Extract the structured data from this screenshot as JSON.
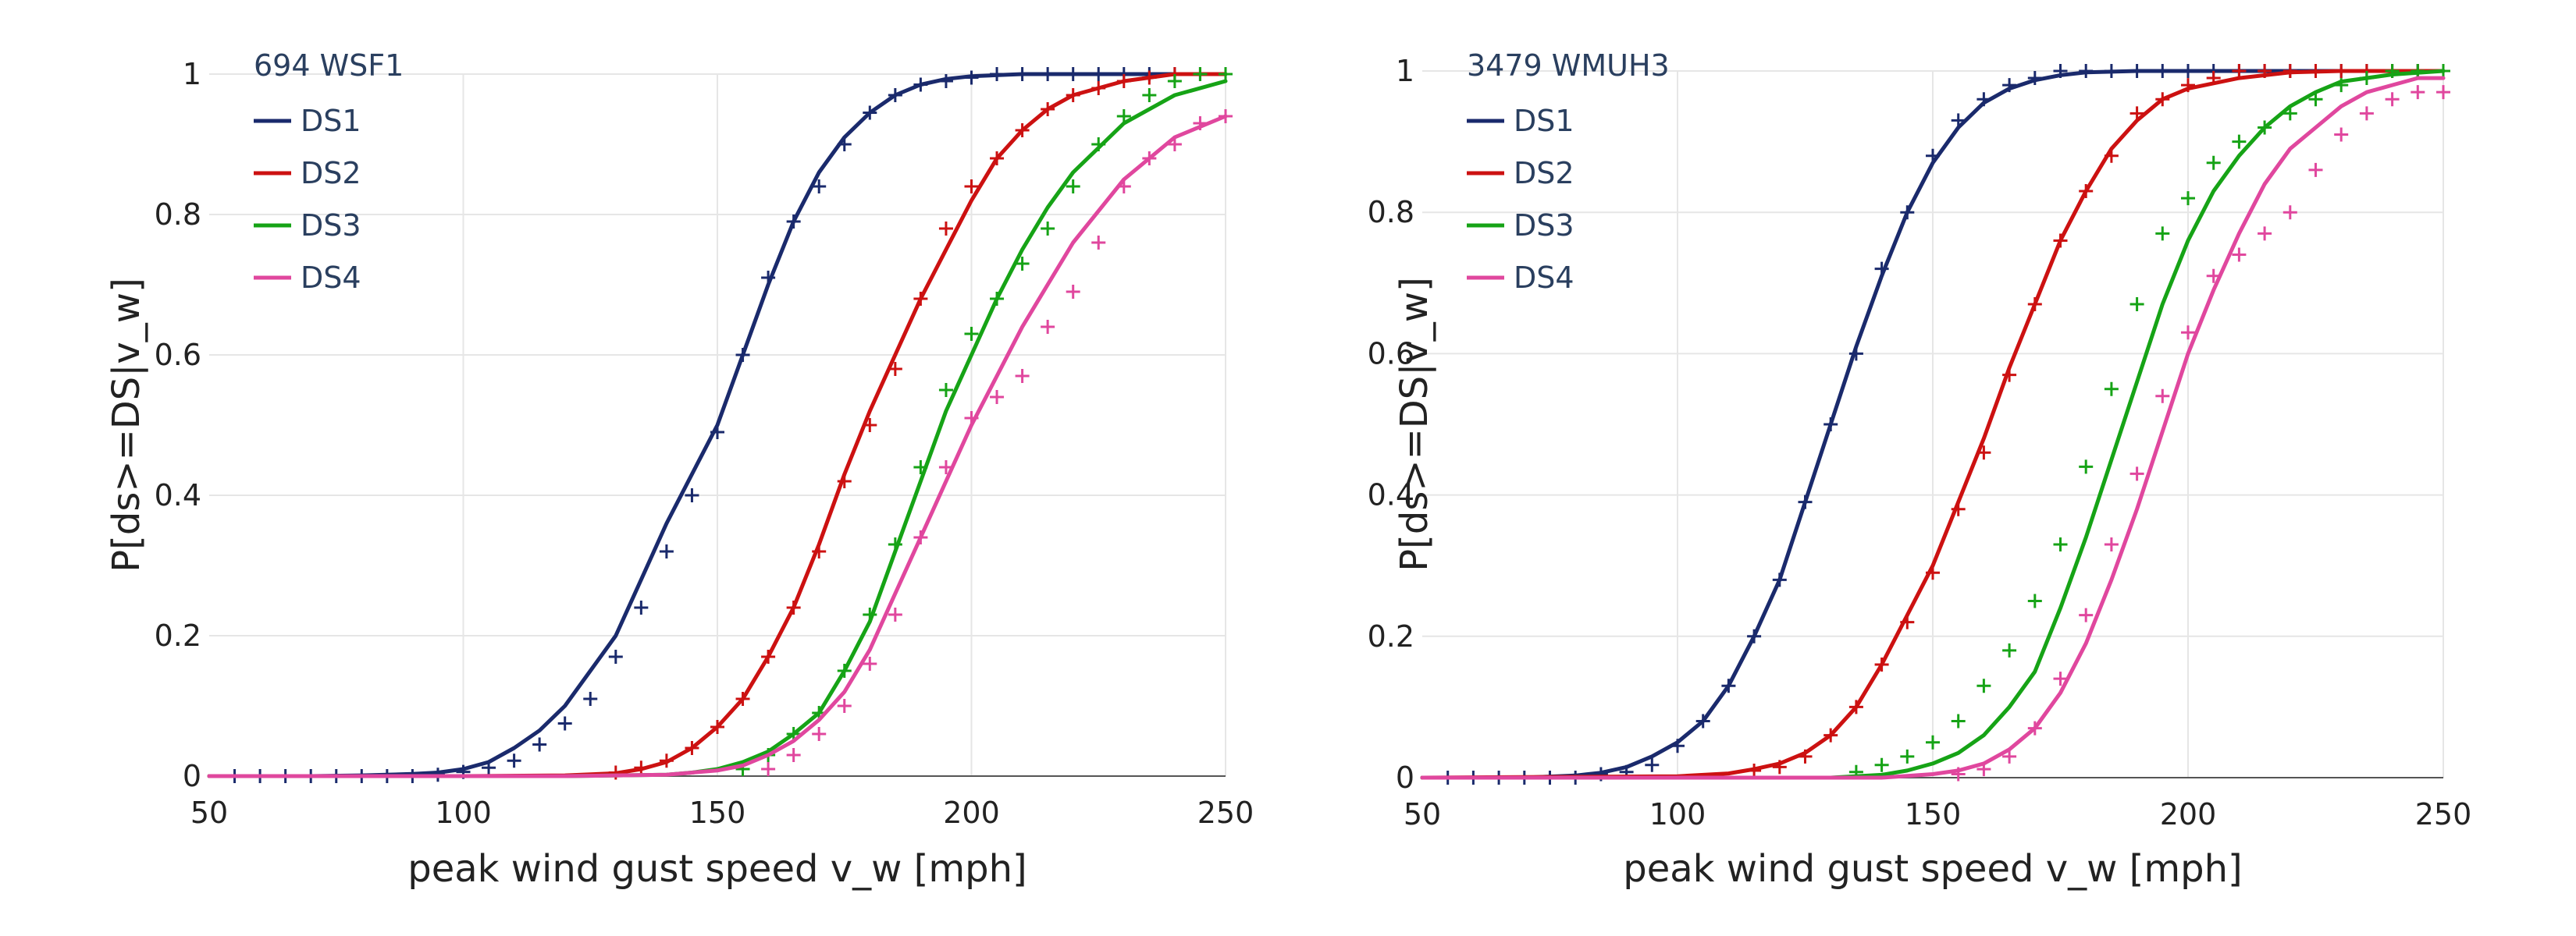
{
  "chart_data": [
    {
      "type": "line",
      "title": "694 WSF1",
      "xlabel": "peak wind gust speed v_w [mph]",
      "ylabel": "P[ds>=DS|v_w]",
      "xlim": [
        50,
        250
      ],
      "ylim": [
        0,
        1
      ],
      "xticks": [
        "50",
        "100",
        "150",
        "200",
        "250"
      ],
      "yticks": [
        "0",
        "0.2",
        "0.4",
        "0.6",
        "0.8",
        "1"
      ],
      "grid": true,
      "legend": "top-left",
      "series": [
        {
          "name": "DS1",
          "color": "#1a2a6c",
          "curve": {
            "x": [
              50,
              60,
              70,
              80,
              90,
              95,
              100,
              105,
              110,
              115,
              120,
              125,
              130,
              135,
              140,
              145,
              150,
              155,
              160,
              165,
              170,
              175,
              180,
              185,
              190,
              195,
              200,
              210,
              220,
              230,
              240,
              250
            ],
            "y": [
              0,
              0,
              0,
              0.001,
              0.003,
              0.005,
              0.01,
              0.02,
              0.04,
              0.065,
              0.1,
              0.15,
              0.2,
              0.28,
              0.36,
              0.43,
              0.5,
              0.6,
              0.7,
              0.79,
              0.86,
              0.91,
              0.945,
              0.97,
              0.985,
              0.993,
              0.997,
              1,
              1,
              1,
              1,
              1
            ]
          },
          "points": {
            "x": [
              55,
              60,
              65,
              70,
              75,
              80,
              85,
              90,
              95,
              100,
              105,
              110,
              115,
              120,
              125,
              130,
              135,
              140,
              145,
              150,
              155,
              160,
              165,
              170,
              175,
              180,
              185,
              190,
              195,
              200,
              205,
              210,
              215,
              220,
              225,
              230,
              235,
              240,
              245,
              250
            ],
            "y": [
              0,
              0,
              0,
              0,
              0,
              0,
              0,
              0,
              0.002,
              0.006,
              0.012,
              0.022,
              0.045,
              0.075,
              0.11,
              0.17,
              0.24,
              0.32,
              0.4,
              0.49,
              0.6,
              0.71,
              0.79,
              0.84,
              0.9,
              0.945,
              0.97,
              0.985,
              0.99,
              0.995,
              1,
              1,
              1,
              1,
              1,
              1,
              1,
              1,
              1,
              1
            ]
          }
        },
        {
          "name": "DS2",
          "color": "#cc1111",
          "curve": {
            "x": [
              50,
              100,
              120,
              130,
              135,
              140,
              145,
              150,
              155,
              160,
              165,
              170,
              175,
              180,
              185,
              190,
              195,
              200,
              205,
              210,
              215,
              220,
              230,
              240,
              250
            ],
            "y": [
              0,
              0,
              0.001,
              0.004,
              0.01,
              0.02,
              0.04,
              0.07,
              0.11,
              0.17,
              0.24,
              0.33,
              0.43,
              0.52,
              0.6,
              0.68,
              0.75,
              0.82,
              0.88,
              0.92,
              0.95,
              0.97,
              0.99,
              1,
              1
            ]
          },
          "points": {
            "x": [
              130,
              135,
              140,
              145,
              150,
              155,
              160,
              165,
              170,
              175,
              180,
              185,
              190,
              195,
              200,
              205,
              210,
              215,
              220,
              225,
              230,
              235,
              240,
              245,
              250
            ],
            "y": [
              0.005,
              0.012,
              0.022,
              0.04,
              0.07,
              0.11,
              0.17,
              0.24,
              0.32,
              0.42,
              0.5,
              0.58,
              0.68,
              0.78,
              0.84,
              0.88,
              0.92,
              0.95,
              0.97,
              0.98,
              0.99,
              0.995,
              1,
              1,
              1
            ]
          }
        },
        {
          "name": "DS3",
          "color": "#16a316",
          "curve": {
            "x": [
              50,
              120,
              140,
              145,
              150,
              155,
              160,
              165,
              170,
              175,
              180,
              185,
              190,
              195,
              200,
              205,
              210,
              215,
              220,
              230,
              240,
              250
            ],
            "y": [
              0,
              0,
              0.002,
              0.005,
              0.01,
              0.02,
              0.035,
              0.06,
              0.09,
              0.15,
              0.22,
              0.32,
              0.42,
              0.52,
              0.6,
              0.68,
              0.75,
              0.81,
              0.86,
              0.93,
              0.97,
              0.99
            ]
          },
          "points": {
            "x": [
              155,
              160,
              165,
              170,
              175,
              180,
              185,
              190,
              195,
              200,
              205,
              210,
              215,
              220,
              225,
              230,
              235,
              240,
              245,
              250
            ],
            "y": [
              0.01,
              0.03,
              0.06,
              0.09,
              0.15,
              0.23,
              0.33,
              0.44,
              0.55,
              0.63,
              0.68,
              0.73,
              0.78,
              0.84,
              0.9,
              0.94,
              0.97,
              0.99,
              1,
              1
            ]
          }
        },
        {
          "name": "DS4",
          "color": "#e0479e",
          "curve": {
            "x": [
              50,
              120,
              140,
              150,
              155,
              160,
              165,
              170,
              175,
              180,
              185,
              190,
              195,
              200,
              205,
              210,
              215,
              220,
              230,
              240,
              250
            ],
            "y": [
              0,
              0,
              0.002,
              0.008,
              0.015,
              0.03,
              0.05,
              0.08,
              0.12,
              0.18,
              0.26,
              0.34,
              0.42,
              0.5,
              0.57,
              0.64,
              0.7,
              0.76,
              0.85,
              0.91,
              0.94
            ]
          },
          "points": {
            "x": [
              160,
              165,
              170,
              175,
              180,
              185,
              190,
              195,
              200,
              205,
              210,
              215,
              220,
              225,
              230,
              235,
              240,
              245,
              250
            ],
            "y": [
              0.01,
              0.03,
              0.06,
              0.1,
              0.16,
              0.23,
              0.34,
              0.44,
              0.51,
              0.54,
              0.57,
              0.64,
              0.69,
              0.76,
              0.84,
              0.88,
              0.9,
              0.93,
              0.94
            ]
          }
        }
      ]
    },
    {
      "type": "line",
      "title": "3479 WMUH3",
      "xlabel": "peak wind gust speed v_w [mph]",
      "ylabel": "P[ds>=DS|v_w]",
      "xlim": [
        50,
        250
      ],
      "ylim": [
        0,
        1
      ],
      "xticks": [
        "50",
        "100",
        "150",
        "200",
        "250"
      ],
      "yticks": [
        "0",
        "0.2",
        "0.4",
        "0.6",
        "0.8",
        "1"
      ],
      "grid": true,
      "legend": "top-left",
      "series": [
        {
          "name": "DS1",
          "color": "#1a2a6c",
          "curve": {
            "x": [
              50,
              70,
              80,
              85,
              90,
              95,
              100,
              105,
              110,
              115,
              120,
              125,
              130,
              135,
              140,
              145,
              150,
              155,
              160,
              165,
              170,
              175,
              180,
              190,
              200,
              250
            ],
            "y": [
              0,
              0,
              0.003,
              0.007,
              0.015,
              0.03,
              0.05,
              0.08,
              0.13,
              0.2,
              0.28,
              0.39,
              0.5,
              0.61,
              0.71,
              0.8,
              0.87,
              0.92,
              0.955,
              0.975,
              0.987,
              0.994,
              0.998,
              1,
              1,
              1
            ]
          },
          "points": {
            "x": [
              55,
              60,
              65,
              70,
              75,
              80,
              85,
              90,
              95,
              100,
              105,
              110,
              115,
              120,
              125,
              130,
              135,
              140,
              145,
              150,
              155,
              160,
              165,
              170,
              175,
              180,
              185,
              190,
              195,
              200,
              205,
              210,
              215,
              220,
              225,
              230,
              235,
              240,
              245,
              250
            ],
            "y": [
              0,
              0,
              0,
              0,
              0,
              0,
              0.005,
              0.008,
              0.018,
              0.045,
              0.08,
              0.13,
              0.2,
              0.28,
              0.39,
              0.5,
              0.6,
              0.72,
              0.8,
              0.88,
              0.93,
              0.96,
              0.98,
              0.99,
              1,
              1,
              1,
              1,
              1,
              1,
              1,
              1,
              1,
              1,
              1,
              1,
              1,
              1,
              1,
              1
            ]
          }
        },
        {
          "name": "DS2",
          "color": "#cc1111",
          "curve": {
            "x": [
              50,
              100,
              110,
              115,
              120,
              125,
              130,
              135,
              140,
              145,
              150,
              155,
              160,
              165,
              170,
              175,
              180,
              185,
              190,
              195,
              200,
              210,
              220,
              230,
              250
            ],
            "y": [
              0,
              0.002,
              0.006,
              0.012,
              0.02,
              0.035,
              0.06,
              0.1,
              0.16,
              0.23,
              0.3,
              0.39,
              0.48,
              0.58,
              0.67,
              0.76,
              0.83,
              0.89,
              0.93,
              0.96,
              0.975,
              0.99,
              0.998,
              1,
              1
            ]
          },
          "points": {
            "x": [
              115,
              120,
              125,
              130,
              135,
              140,
              145,
              150,
              155,
              160,
              165,
              170,
              175,
              180,
              185,
              190,
              195,
              200,
              205,
              210,
              215,
              220,
              225,
              230,
              235,
              240,
              245,
              250
            ],
            "y": [
              0.01,
              0.015,
              0.03,
              0.06,
              0.1,
              0.16,
              0.22,
              0.29,
              0.38,
              0.46,
              0.57,
              0.67,
              0.76,
              0.83,
              0.88,
              0.94,
              0.96,
              0.98,
              0.99,
              1,
              1,
              1,
              1,
              1,
              1,
              1,
              1,
              1
            ]
          }
        },
        {
          "name": "DS3",
          "color": "#16a316",
          "curve": {
            "x": [
              50,
              130,
              140,
              145,
              150,
              155,
              160,
              165,
              170,
              175,
              180,
              185,
              190,
              195,
              200,
              205,
              210,
              215,
              220,
              225,
              230,
              240,
              250
            ],
            "y": [
              0,
              0,
              0.004,
              0.01,
              0.02,
              0.035,
              0.06,
              0.1,
              0.15,
              0.24,
              0.34,
              0.45,
              0.56,
              0.67,
              0.76,
              0.83,
              0.88,
              0.92,
              0.95,
              0.97,
              0.985,
              0.995,
              1
            ]
          },
          "points": {
            "x": [
              135,
              140,
              145,
              150,
              155,
              160,
              165,
              170,
              175,
              180,
              185,
              190,
              195,
              200,
              205,
              210,
              215,
              220,
              225,
              230,
              235,
              240,
              245,
              250
            ],
            "y": [
              0.008,
              0.018,
              0.03,
              0.05,
              0.08,
              0.13,
              0.18,
              0.25,
              0.33,
              0.44,
              0.55,
              0.67,
              0.77,
              0.82,
              0.87,
              0.9,
              0.92,
              0.94,
              0.96,
              0.98,
              0.99,
              1,
              1,
              1
            ]
          }
        },
        {
          "name": "DS4",
          "color": "#e0479e",
          "curve": {
            "x": [
              50,
              140,
              150,
              155,
              160,
              165,
              170,
              175,
              180,
              185,
              190,
              195,
              200,
              205,
              210,
              215,
              220,
              225,
              230,
              235,
              240,
              245,
              250
            ],
            "y": [
              0,
              0,
              0.005,
              0.01,
              0.02,
              0.04,
              0.07,
              0.12,
              0.19,
              0.28,
              0.38,
              0.49,
              0.6,
              0.69,
              0.77,
              0.84,
              0.89,
              0.92,
              0.95,
              0.97,
              0.98,
              0.99,
              0.99
            ]
          },
          "points": {
            "x": [
              155,
              160,
              165,
              170,
              175,
              180,
              185,
              190,
              195,
              200,
              205,
              210,
              215,
              220,
              225,
              230,
              235,
              240,
              245,
              250
            ],
            "y": [
              0.005,
              0.012,
              0.03,
              0.07,
              0.14,
              0.23,
              0.33,
              0.43,
              0.54,
              0.63,
              0.71,
              0.74,
              0.77,
              0.8,
              0.86,
              0.91,
              0.94,
              0.96,
              0.97,
              0.97
            ]
          }
        }
      ]
    }
  ]
}
